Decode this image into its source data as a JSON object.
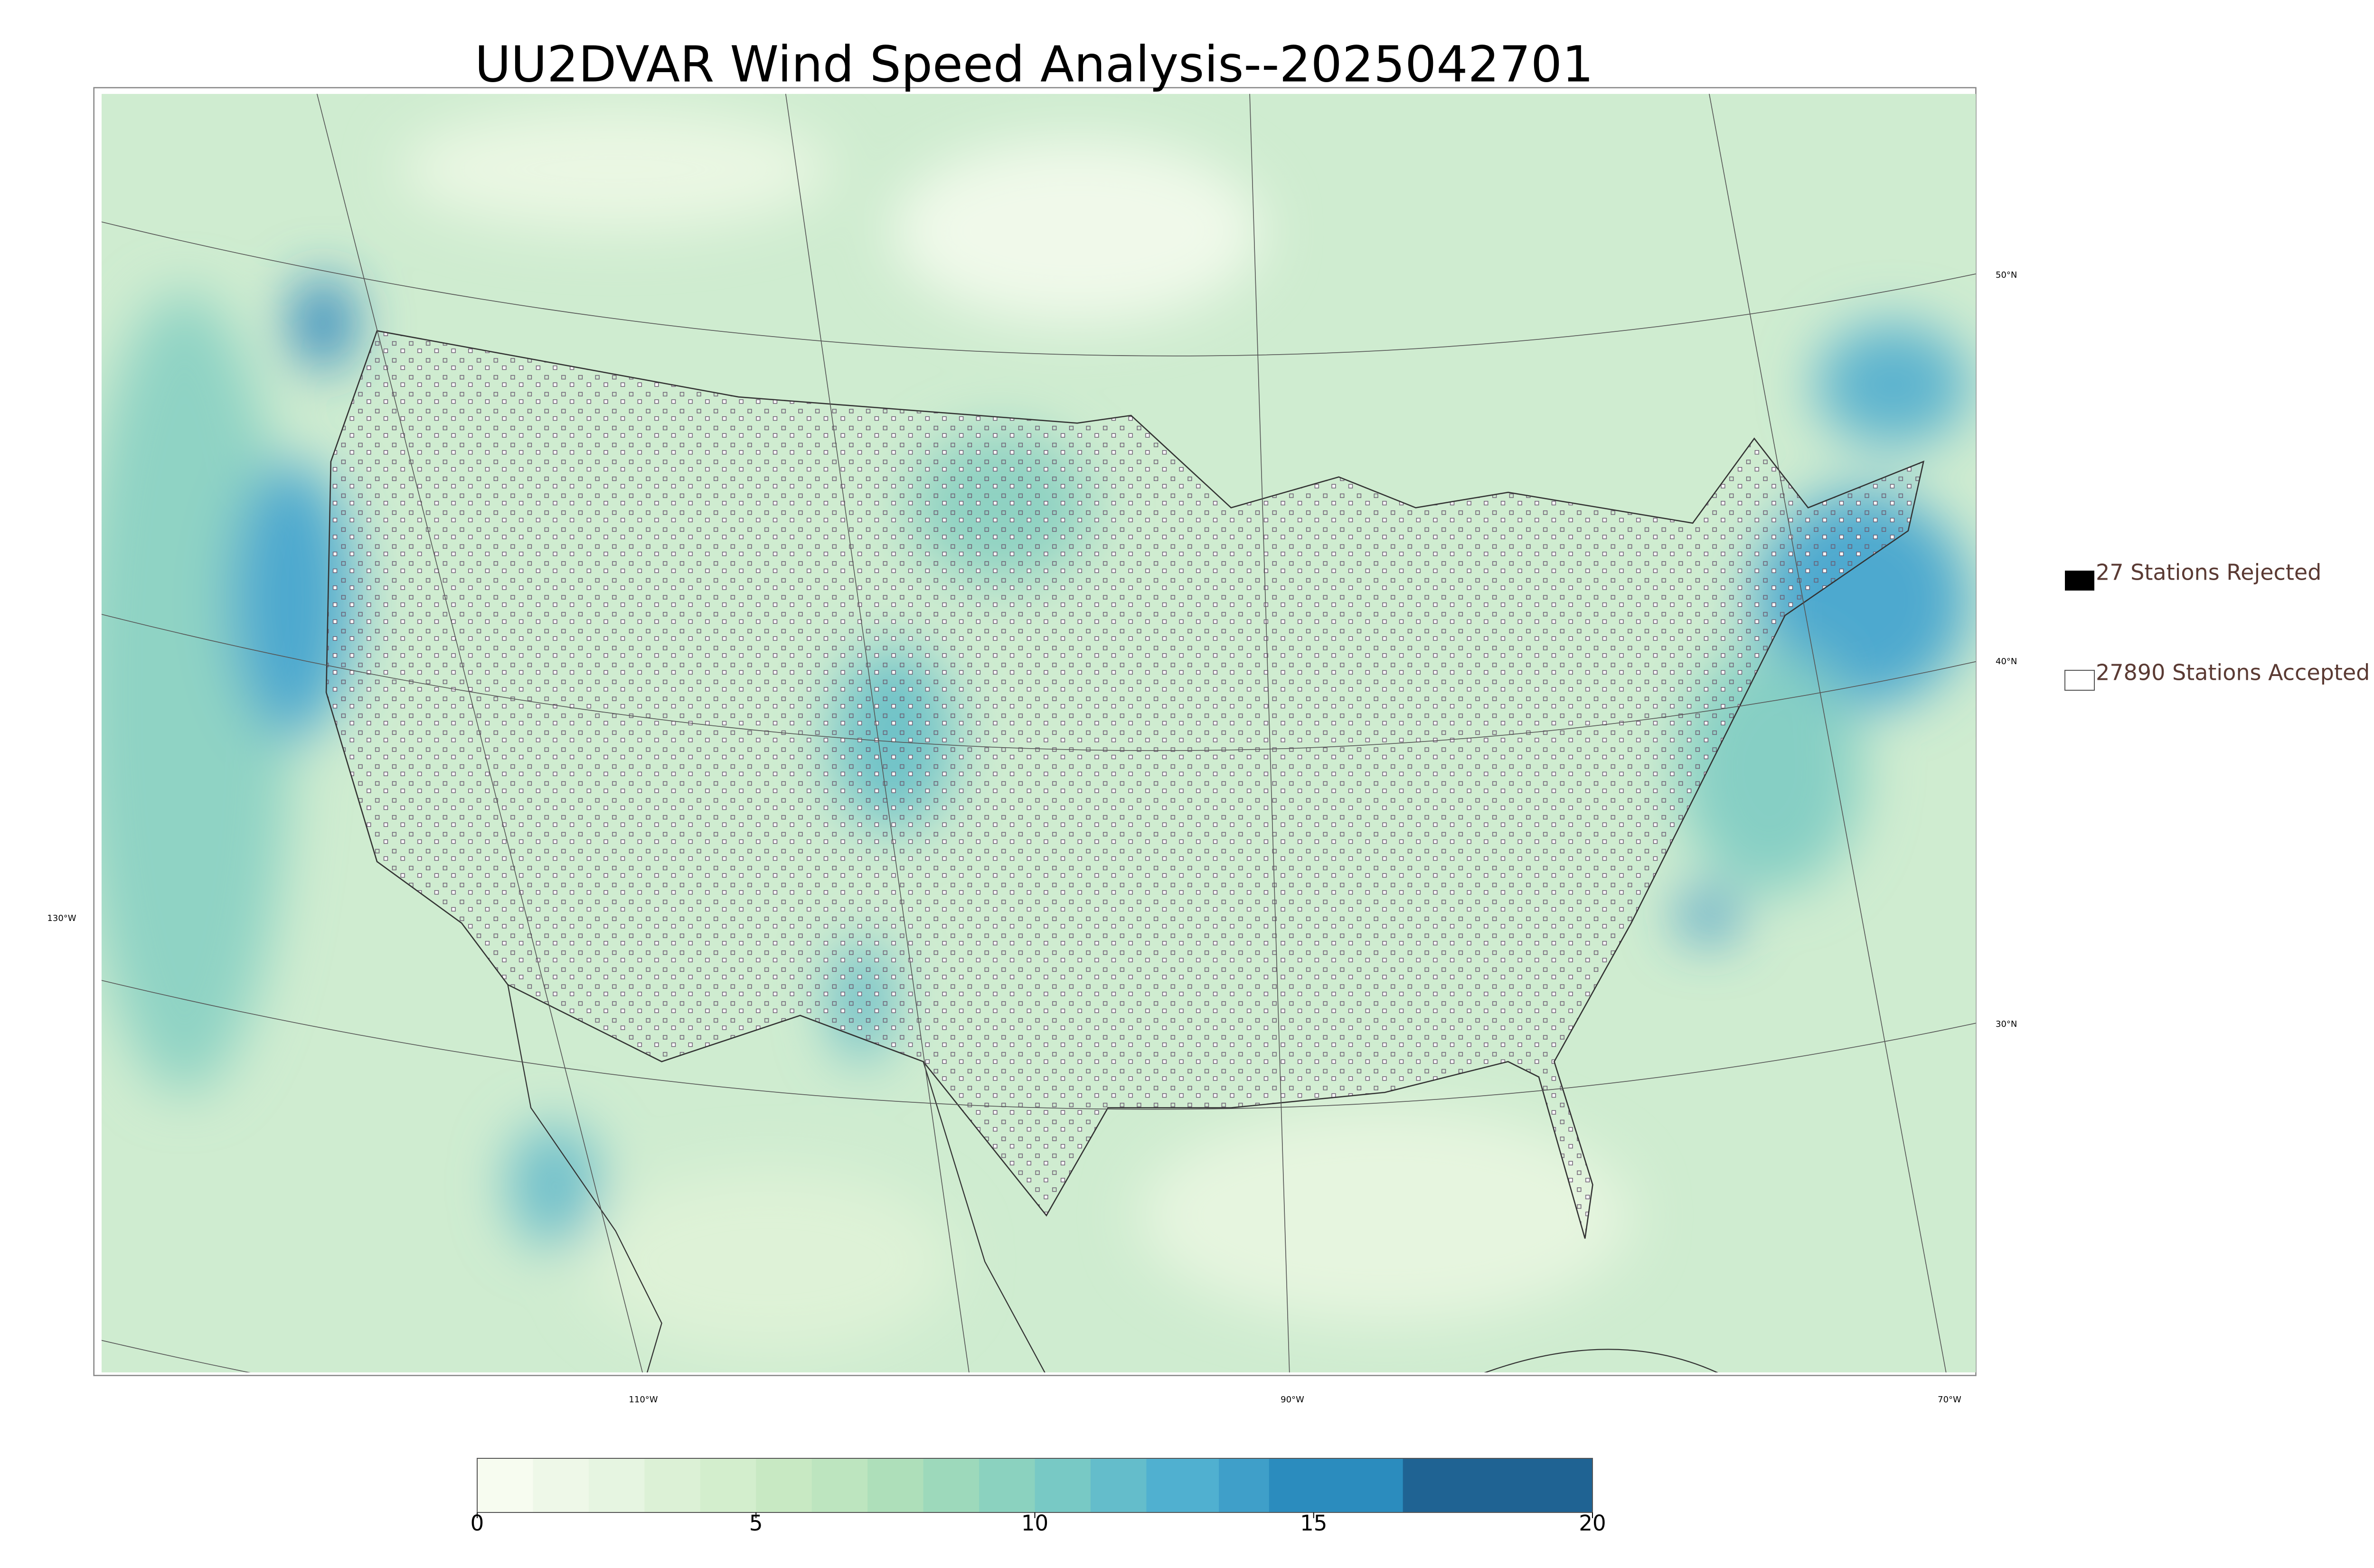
{
  "title": "UU2DVAR Wind Speed Analysis--2025042701",
  "legend": {
    "rejected": "27 Stations Rejected",
    "accepted": "27890 Stations Accepted"
  },
  "graticule": {
    "lat": [
      "50°N",
      "40°N",
      "30°N"
    ],
    "lon": [
      "130°W",
      "110°W",
      "90°W",
      "70°W"
    ]
  },
  "colorbar": {
    "lim": [
      0,
      20
    ],
    "ticks": [
      0,
      5,
      10,
      15,
      20
    ],
    "bounds": [
      0,
      1,
      2,
      3,
      4,
      5,
      6,
      7,
      8,
      9,
      10,
      11,
      12,
      13.3,
      14.2,
      16.6,
      20
    ],
    "colors": [
      "#f7fcf0",
      "#eef8e8",
      "#e6f5e1",
      "#dcf1d6",
      "#d3eecd",
      "#c8e9c3",
      "#bde5bf",
      "#aedfba",
      "#9dd9bb",
      "#8bd2bf",
      "#78c9c5",
      "#64bdcb",
      "#50b0d0",
      "#3f9fc9",
      "#2b8cbe",
      "#1f6393"
    ]
  }
}
